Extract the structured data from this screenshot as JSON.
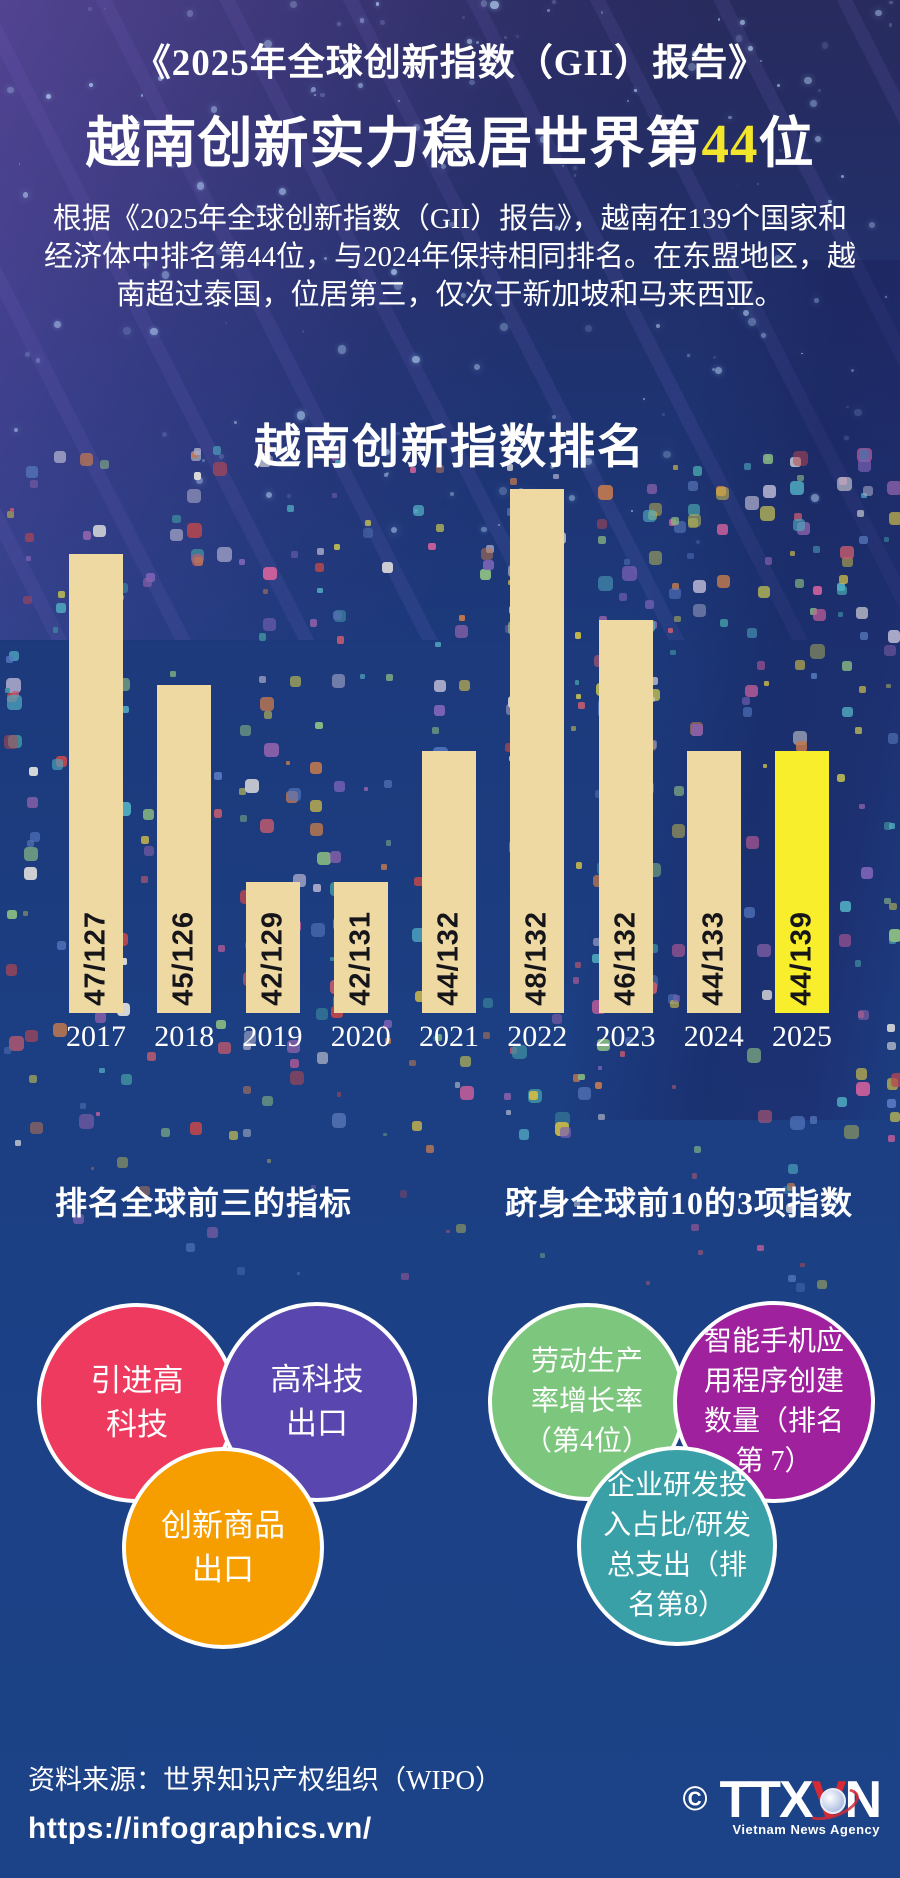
{
  "page": {
    "title1": "《2025年全球创新指数（GII）报告》",
    "title2": {
      "prefix": "越南创新实力稳居世界第",
      "highlight": "44",
      "suffix": "位"
    },
    "intro": "根据《2025年全球创新指数（GII）报告》，越南在139个国家和经济体中排名第44位，与2024年保持相同排名。在东盟地区，越南超过泰国，位居第三，仅次于新加坡和马来西亚。"
  },
  "chart_data": {
    "type": "bar",
    "title": "越南创新指数排名",
    "categories": [
      "2017",
      "2018",
      "2019",
      "2020",
      "2021",
      "2022",
      "2023",
      "2024",
      "2025"
    ],
    "values": [
      47,
      45,
      42,
      42,
      44,
      48,
      46,
      44,
      44
    ],
    "totals": [
      127,
      126,
      129,
      131,
      132,
      132,
      132,
      133,
      139
    ],
    "labels": [
      "47/127",
      "45/126",
      "42/129",
      "42/131",
      "44/132",
      "48/132",
      "46/132",
      "44/133",
      "44/139"
    ],
    "xlabel": "",
    "ylabel": "",
    "ylim": [
      40,
      50
    ],
    "note": "bar height encodes Vietnam GII rank; label = rank/number of economies",
    "bar_color": "#eed9a2",
    "highlight_index": 8,
    "highlight_color": "#f8ee2b",
    "label_color": "#15151a",
    "axis_text_color": "#ffffff",
    "legend": null,
    "grid": false
  },
  "sections": {
    "left": {
      "heading": "排名全球前三的指标",
      "bubbles": [
        {
          "label": "引进高\n科技",
          "color": "#ee3a5e"
        },
        {
          "label": "高科技\n出口",
          "color": "#5946ae"
        },
        {
          "label": "创新商品\n出口",
          "color": "#f69d00"
        }
      ]
    },
    "right": {
      "heading": "跻身全球前10的3项指数",
      "bubbles": [
        {
          "label": "劳动生产\n率增长率\n（第4位）",
          "color": "#7cc77d"
        },
        {
          "label": "智能手机应\n用程序创建\n数量（排名\n第 7）",
          "color": "#a0219e"
        },
        {
          "label": "企业研发投\n入占比/研发\n总支出（排\n名第8）",
          "color": "#3aa0a8"
        }
      ]
    }
  },
  "footer": {
    "source": "资料来源：世界知识产权组织（WIPO）",
    "url": "https://infographics.vn/",
    "copyright": "©",
    "logo": {
      "part1": "TTX",
      "part2": "V",
      "part3": "N",
      "subtext": "Vietnam News Agency"
    }
  },
  "theme": {
    "highlight_yellow": "#f2e52c",
    "bg_top": "#282b5e",
    "bg_bottom": "#1c4287",
    "confetti_palette": [
      "#c05a6e",
      "#4fa8bf",
      "#b3b356",
      "#7a62b5",
      "#c2794e",
      "#88b882",
      "#a9a9c9",
      "#5577c0",
      "#c95f9a",
      "#d9d9d9",
      "#3f8fa0",
      "#b8474f",
      "#8860a8",
      "#c9b84a",
      "#4f6fb0"
    ]
  }
}
